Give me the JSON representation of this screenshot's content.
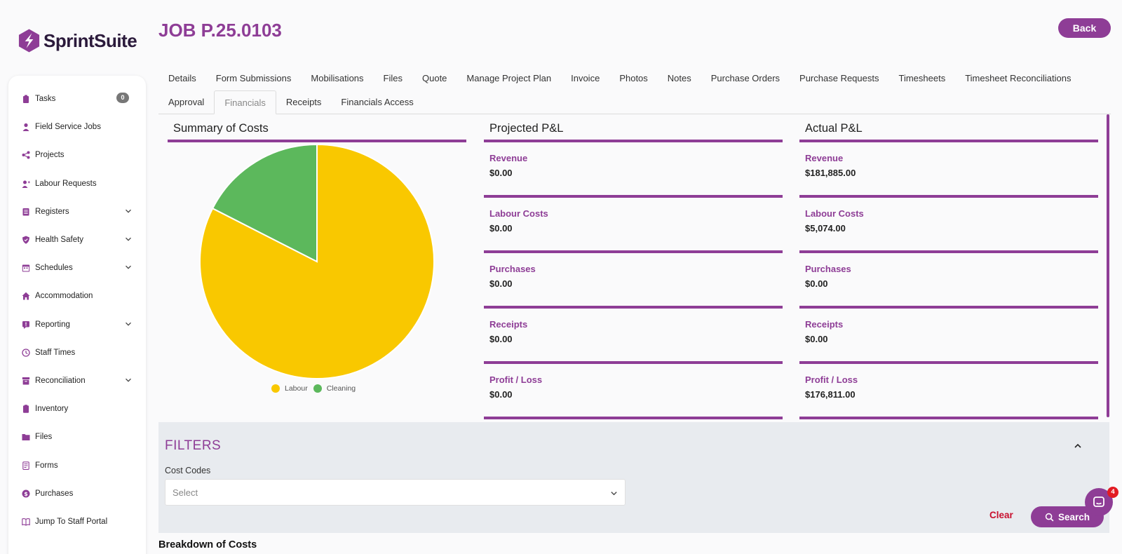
{
  "brand": {
    "name": "SprintSuite",
    "accent": "#8e3d96"
  },
  "page": {
    "title": "JOB P.25.0103",
    "back_label": "Back"
  },
  "sidebar": {
    "items": [
      {
        "label": "Tasks",
        "icon": "clipboard-icon",
        "badge": "0"
      },
      {
        "label": "Field Service Jobs",
        "icon": "worker-icon"
      },
      {
        "label": "Projects",
        "icon": "share-icon"
      },
      {
        "label": "Labour Requests",
        "icon": "user-plus-icon"
      },
      {
        "label": "Registers",
        "icon": "register-icon",
        "expandable": true
      },
      {
        "label": "Health Safety",
        "icon": "shield-icon",
        "expandable": true
      },
      {
        "label": "Schedules",
        "icon": "calendar-icon",
        "expandable": true
      },
      {
        "label": "Accommodation",
        "icon": "home-icon"
      },
      {
        "label": "Reporting",
        "icon": "report-icon",
        "expandable": true
      },
      {
        "label": "Staff Times",
        "icon": "clock-icon"
      },
      {
        "label": "Reconciliation",
        "icon": "archive-icon",
        "expandable": true
      },
      {
        "label": "Inventory",
        "icon": "inventory-icon"
      },
      {
        "label": "Files",
        "icon": "folder-icon"
      },
      {
        "label": "Forms",
        "icon": "form-icon"
      },
      {
        "label": "Purchases",
        "icon": "dollar-icon"
      },
      {
        "label": "Jump To Staff Portal",
        "icon": "portal-icon"
      }
    ]
  },
  "tabs": {
    "row1": [
      "Details",
      "Form Submissions",
      "Mobilisations",
      "Files",
      "Quote",
      "Manage Project Plan",
      "Invoice",
      "Photos",
      "Notes",
      "Purchase Orders",
      "Purchase Requests",
      "Timesheets",
      "Timesheet Reconciliations"
    ],
    "row2": [
      "Approval",
      "Financials",
      "Receipts",
      "Financials Access"
    ],
    "active": "Financials"
  },
  "summary": {
    "title": "Summary of Costs"
  },
  "chart_data": {
    "type": "pie",
    "categories": [
      "Labour",
      "Cleaning"
    ],
    "values": [
      82.5,
      17.5
    ],
    "colors": [
      "#f9c800",
      "#5cb85c"
    ],
    "legend": "bottom"
  },
  "projected": {
    "title": "Projected P&L",
    "rows": [
      {
        "label": "Revenue",
        "value": "$0.00"
      },
      {
        "label": "Labour Costs",
        "value": "$0.00"
      },
      {
        "label": "Purchases",
        "value": "$0.00"
      },
      {
        "label": "Receipts",
        "value": "$0.00"
      },
      {
        "label": "Profit / Loss",
        "value": "$0.00"
      }
    ]
  },
  "actual": {
    "title": "Actual P&L",
    "rows": [
      {
        "label": "Revenue",
        "value": "$181,885.00"
      },
      {
        "label": "Labour Costs",
        "value": "$5,074.00"
      },
      {
        "label": "Purchases",
        "value": "$0.00"
      },
      {
        "label": "Receipts",
        "value": "$0.00"
      },
      {
        "label": "Profit / Loss",
        "value": "$176,811.00"
      }
    ]
  },
  "filters": {
    "title": "FILTERS",
    "cost_codes_label": "Cost Codes",
    "cost_codes_placeholder": "Select",
    "clear_label": "Clear",
    "search_label": "Search"
  },
  "chat": {
    "badge": "4"
  },
  "breakdown": {
    "title": "Breakdown of Costs"
  }
}
